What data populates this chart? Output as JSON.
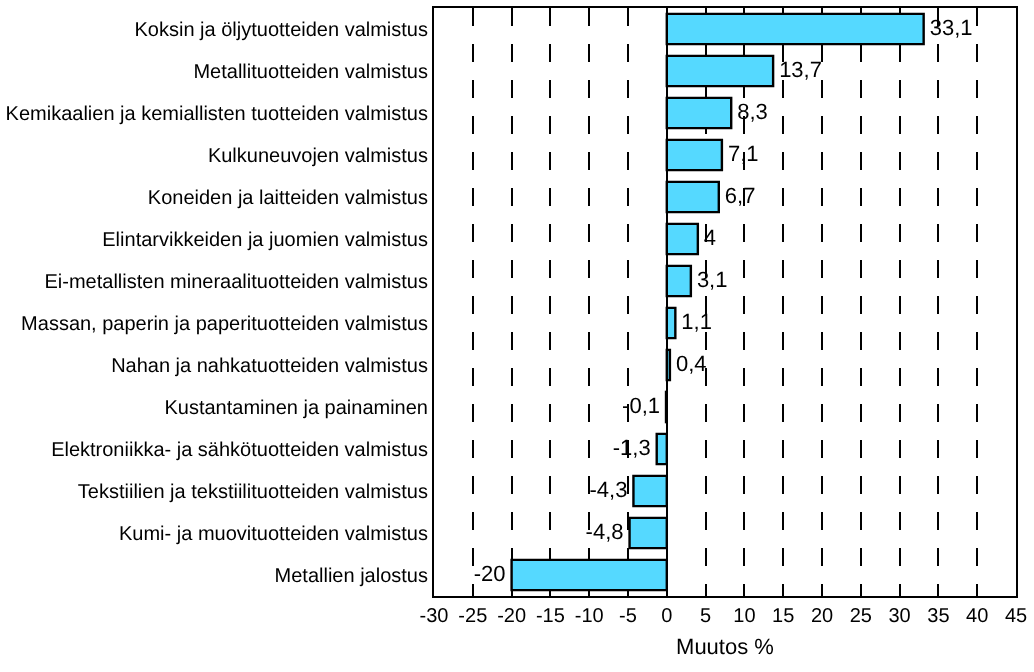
{
  "chart_data": {
    "type": "bar",
    "orientation": "horizontal",
    "xlabel": "Muutos %",
    "categories": [
      "Koksin ja öljytuotteiden valmistus",
      "Metallituotteiden valmistus",
      "Kemikaalien ja kemiallisten tuotteiden valmistus",
      "Kulkuneuvojen valmistus",
      "Koneiden ja laitteiden valmistus",
      "Elintarvikkeiden ja juomien valmistus",
      "Ei-metallisten mineraalituotteiden valmistus",
      "Massan, paperin ja paperituotteiden valmistus",
      "Nahan ja nahkatuotteiden valmistus",
      "Kustantaminen ja painaminen",
      "Elektroniikka- ja sähkötuotteiden valmistus",
      "Tekstiilien ja tekstiilituotteiden valmistus",
      "Kumi- ja muovituotteiden valmistus",
      "Metallien jalostus"
    ],
    "values": [
      33.1,
      13.7,
      8.3,
      7.1,
      6.7,
      4,
      3.1,
      1.1,
      0.4,
      -0.1,
      -1.3,
      -4.3,
      -4.8,
      -20
    ],
    "value_labels": [
      "33,1",
      "13,7",
      "8,3",
      "7,1",
      "6,7",
      "4",
      "3,1",
      "1,1",
      "0,4",
      "-0,1",
      "-1,3",
      "-4,3",
      "-4,8",
      "-20"
    ],
    "color": "#55d9ff",
    "xlim": [
      -30,
      45
    ],
    "xticks": [
      -30,
      -25,
      -20,
      -15,
      -10,
      -5,
      0,
      5,
      10,
      15,
      20,
      25,
      30,
      35,
      40,
      45
    ],
    "grid": "x",
    "legend": false
  }
}
